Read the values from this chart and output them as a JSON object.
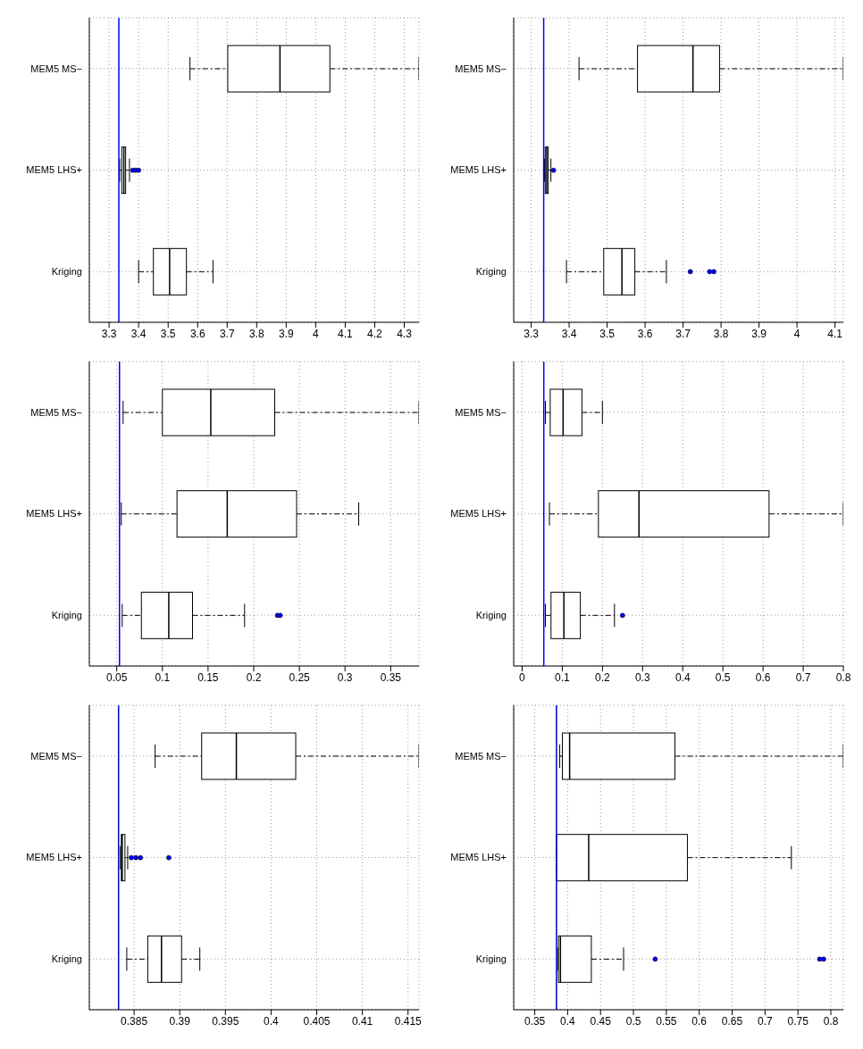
{
  "chart_data": [
    {
      "type": "box",
      "orientation": "horizontal",
      "categories": [
        "MEM5 MS−",
        "MEM5 LHS+",
        "Kriging"
      ],
      "grid": true,
      "xlim": [
        3.233,
        4.35
      ],
      "xticks": [
        3.3,
        3.4,
        3.5,
        3.6,
        3.7,
        3.8,
        3.9,
        4,
        4.1,
        4.2,
        4.3
      ],
      "ref_lines": [
        {
          "axis": "x",
          "value": 3.333,
          "color": "#0000ff"
        }
      ],
      "boxes": [
        {
          "low": 3.574,
          "q1": 3.702,
          "median": 3.879,
          "q3": 4.048,
          "high": 4.35
        },
        {
          "low": 3.336,
          "q1": 3.343,
          "median": 3.35,
          "q3": 3.356,
          "high": 3.369,
          "outliers": [
            3.38,
            3.39,
            3.4
          ]
        },
        {
          "low": 3.4,
          "q1": 3.45,
          "median": 3.505,
          "q3": 3.562,
          "high": 3.652
        }
      ]
    },
    {
      "type": "box",
      "orientation": "horizontal",
      "categories": [
        "MEM5 MS−",
        "MEM5 LHS+",
        "Kriging"
      ],
      "grid": true,
      "xlim": [
        3.254,
        4.122
      ],
      "xticks": [
        3.3,
        3.4,
        3.5,
        3.6,
        3.7,
        3.8,
        3.9,
        4,
        4.1
      ],
      "ref_lines": [
        {
          "axis": "x",
          "value": 3.333,
          "color": "#0000ff"
        }
      ],
      "boxes": [
        {
          "low": 3.426,
          "q1": 3.58,
          "median": 3.726,
          "q3": 3.796,
          "high": 4.122
        },
        {
          "low": 3.335,
          "q1": 3.337,
          "median": 3.341,
          "q3": 3.345,
          "high": 3.352,
          "outliers": [
            3.359
          ]
        },
        {
          "low": 3.393,
          "q1": 3.491,
          "median": 3.539,
          "q3": 3.573,
          "high": 3.656,
          "outliers": [
            3.719,
            3.77,
            3.781
          ]
        }
      ]
    },
    {
      "type": "box",
      "orientation": "horizontal",
      "categories": [
        "MEM5 MS−",
        "MEM5 LHS+",
        "Kriging"
      ],
      "grid": true,
      "xlim": [
        0.02,
        0.381
      ],
      "xticks": [
        0.05,
        0.1,
        0.15,
        0.2,
        0.25,
        0.3,
        0.35
      ],
      "ref_lines": [
        {
          "axis": "x",
          "value": 0.053,
          "color": "#0000ff"
        }
      ],
      "boxes": [
        {
          "low": 0.057,
          "q1": 0.1,
          "median": 0.153,
          "q3": 0.223,
          "high": 0.381
        },
        {
          "low": 0.055,
          "q1": 0.116,
          "median": 0.171,
          "q3": 0.247,
          "high": 0.315
        },
        {
          "low": 0.056,
          "q1": 0.077,
          "median": 0.107,
          "q3": 0.133,
          "high": 0.19,
          "outliers": [
            0.226,
            0.229
          ]
        }
      ]
    },
    {
      "type": "box",
      "orientation": "horizontal",
      "categories": [
        "MEM5 MS−",
        "MEM5 LHS+",
        "Kriging"
      ],
      "grid": true,
      "xlim": [
        -0.021,
        0.8
      ],
      "xticks": [
        0,
        0.1,
        0.2,
        0.3,
        0.4,
        0.5,
        0.6,
        0.7,
        0.8
      ],
      "ref_lines": [
        {
          "axis": "x",
          "value": 0.054,
          "color": "#0000ff"
        }
      ],
      "boxes": [
        {
          "low": 0.058,
          "q1": 0.07,
          "median": 0.102,
          "q3": 0.149,
          "high": 0.2
        },
        {
          "low": 0.068,
          "q1": 0.19,
          "median": 0.291,
          "q3": 0.615,
          "high": 0.8
        },
        {
          "low": 0.058,
          "q1": 0.072,
          "median": 0.104,
          "q3": 0.145,
          "high": 0.23,
          "outliers": [
            0.25
          ]
        }
      ]
    },
    {
      "type": "box",
      "orientation": "horizontal",
      "categories": [
        "MEM5 MS−",
        "MEM5 LHS+",
        "Kriging"
      ],
      "grid": true,
      "xlim": [
        0.3801,
        0.4162
      ],
      "xticks": [
        0.385,
        0.39,
        0.395,
        0.4,
        0.405,
        0.41,
        0.415
      ],
      "ref_lines": [
        {
          "axis": "x",
          "value": 0.3833,
          "color": "#0000cc"
        }
      ],
      "boxes": [
        {
          "low": 0.3873,
          "q1": 0.3924,
          "median": 0.3962,
          "q3": 0.4027,
          "high": 0.4162
        },
        {
          "low": 0.3835,
          "q1": 0.3836,
          "median": 0.3837,
          "q3": 0.384,
          "high": 0.3843,
          "outliers": [
            0.3847,
            0.3852,
            0.3857,
            0.3888
          ]
        },
        {
          "low": 0.3842,
          "q1": 0.3865,
          "median": 0.388,
          "q3": 0.3902,
          "high": 0.3922
        }
      ]
    },
    {
      "type": "box",
      "orientation": "horizontal",
      "categories": [
        "MEM5 MS−",
        "MEM5 LHS+",
        "Kriging"
      ],
      "grid": true,
      "xlim": [
        0.318,
        0.819
      ],
      "xticks": [
        0.35,
        0.4,
        0.45,
        0.5,
        0.55,
        0.6,
        0.65,
        0.7,
        0.75,
        0.8
      ],
      "ref_lines": [
        {
          "axis": "x",
          "value": 0.383,
          "color": "#0000cc"
        }
      ],
      "boxes": [
        {
          "low": 0.388,
          "q1": 0.392,
          "median": 0.403,
          "q3": 0.563,
          "high": 0.819
        },
        {
          "low": 0.383,
          "q1": 0.383,
          "median": 0.432,
          "q3": 0.582,
          "high": 0.74
        },
        {
          "low": 0.385,
          "q1": 0.386,
          "median": 0.389,
          "q3": 0.436,
          "high": 0.485,
          "outliers": [
            0.533,
            0.783,
            0.789
          ]
        }
      ]
    }
  ]
}
